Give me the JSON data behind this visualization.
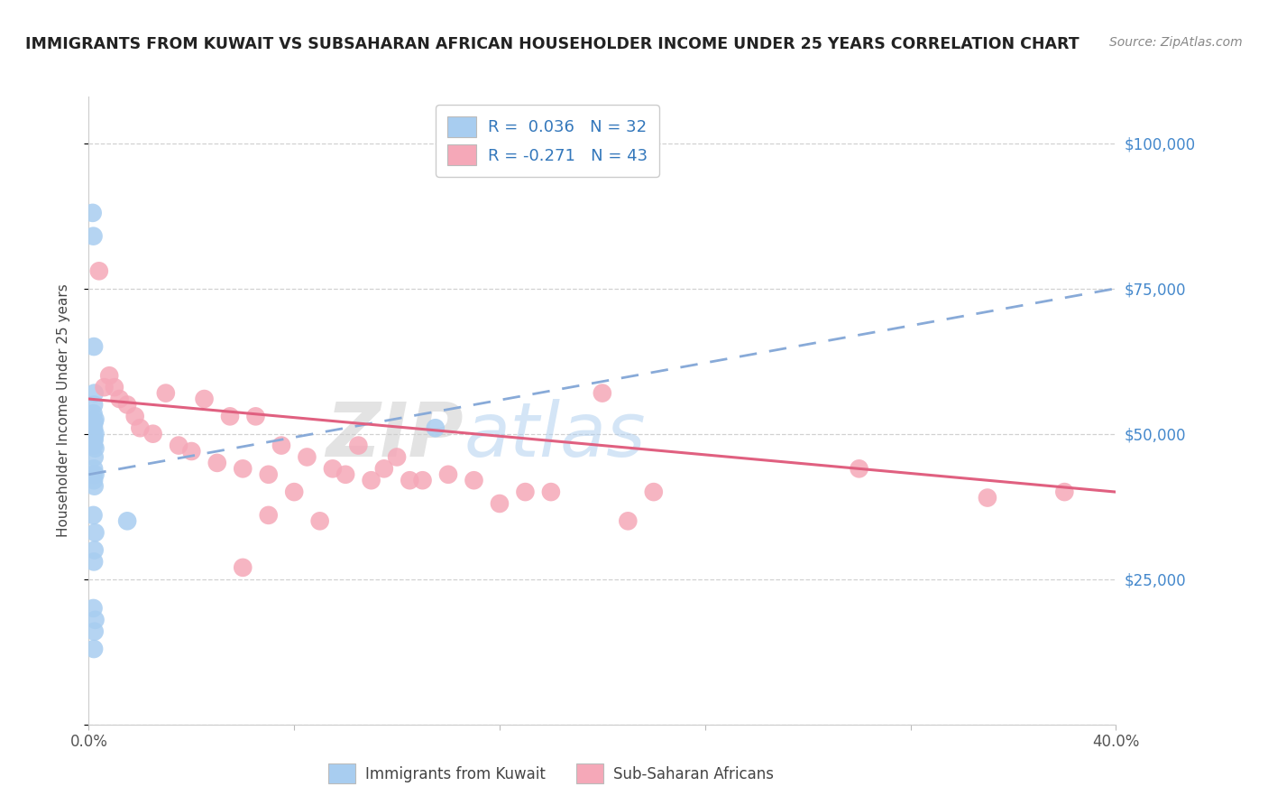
{
  "title": "IMMIGRANTS FROM KUWAIT VS SUBSAHARAN AFRICAN HOUSEHOLDER INCOME UNDER 25 YEARS CORRELATION CHART",
  "source": "Source: ZipAtlas.com",
  "ylabel": "Householder Income Under 25 years",
  "x_min": 0.0,
  "x_max": 40.0,
  "y_min": 0,
  "y_max": 108000,
  "y_ticks": [
    0,
    25000,
    50000,
    75000,
    100000
  ],
  "y_tick_labels": [
    "",
    "$25,000",
    "$50,000",
    "$75,000",
    "$100,000"
  ],
  "x_ticks": [
    0,
    8,
    16,
    24,
    32,
    40
  ],
  "x_tick_labels": [
    "0.0%",
    "",
    "",
    "",
    "",
    "40.0%"
  ],
  "legend1_R": "R =  0.036",
  "legend1_N": "N = 32",
  "legend2_R": "R = -0.271",
  "legend2_N": "N = 43",
  "blue_color": "#a8cdf0",
  "blue_line_color": "#88aad8",
  "pink_color": "#f5a8b8",
  "pink_line_color": "#e06080",
  "label1": "Immigrants from Kuwait",
  "label2": "Sub-Saharan Africans",
  "watermark_part1": "ZIP",
  "watermark_part2": "atlas",
  "blue_line_x0": 0.0,
  "blue_line_y0": 43000,
  "blue_line_x1": 40.0,
  "blue_line_y1": 75000,
  "pink_line_x0": 0.0,
  "pink_line_y0": 56000,
  "pink_line_x1": 40.0,
  "pink_line_y1": 40000,
  "blue_x": [
    0.15,
    0.18,
    0.2,
    0.22,
    0.2,
    0.18,
    0.25,
    0.22,
    0.2,
    0.18,
    0.25,
    0.2,
    0.22,
    0.18,
    0.2,
    0.25,
    0.22,
    0.2,
    0.18,
    0.25,
    0.2,
    0.22,
    0.18,
    0.25,
    0.22,
    0.2,
    0.18,
    0.25,
    0.22,
    0.2,
    1.5,
    13.5
  ],
  "blue_y": [
    88000,
    84000,
    65000,
    57000,
    55000,
    53500,
    52500,
    52000,
    51000,
    50500,
    50000,
    49500,
    49000,
    48500,
    48000,
    47500,
    46000,
    44000,
    43000,
    43000,
    42000,
    41000,
    36000,
    33000,
    30000,
    28000,
    20000,
    18000,
    16000,
    13000,
    35000,
    51000
  ],
  "pink_x": [
    0.4,
    0.6,
    0.8,
    1.0,
    1.2,
    1.5,
    1.8,
    2.0,
    2.5,
    3.0,
    3.5,
    4.0,
    4.5,
    5.0,
    5.5,
    6.0,
    6.5,
    7.0,
    7.5,
    8.0,
    8.5,
    9.0,
    9.5,
    10.0,
    10.5,
    11.0,
    11.5,
    12.0,
    12.5,
    13.0,
    14.0,
    15.0,
    16.0,
    17.0,
    18.0,
    20.0,
    21.0,
    22.0,
    30.0,
    35.0,
    38.0,
    7.0,
    6.0
  ],
  "pink_y": [
    78000,
    58000,
    60000,
    58000,
    56000,
    55000,
    53000,
    51000,
    50000,
    57000,
    48000,
    47000,
    56000,
    45000,
    53000,
    44000,
    53000,
    43000,
    48000,
    40000,
    46000,
    35000,
    44000,
    43000,
    48000,
    42000,
    44000,
    46000,
    42000,
    42000,
    43000,
    42000,
    38000,
    40000,
    40000,
    57000,
    35000,
    40000,
    44000,
    39000,
    40000,
    36000,
    27000
  ]
}
